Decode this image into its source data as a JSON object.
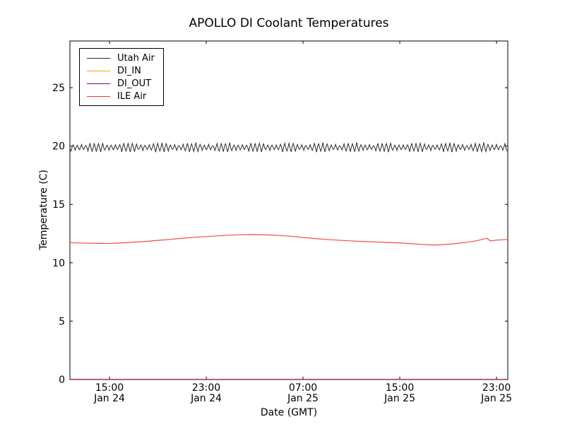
{
  "page": {
    "background_color": "#ffffff"
  },
  "chart_data": {
    "type": "line",
    "title": "APOLLO DI Coolant Temperatures",
    "xlabel": "Date (GMT)",
    "ylabel": "Temperature (C)",
    "grid": false,
    "x_unit": "hours since Jan 24 00:00 GMT",
    "xlim": [
      11.73,
      47.93
    ],
    "ylim": [
      0,
      29
    ],
    "y_ticks": [
      0,
      5,
      10,
      15,
      20,
      25
    ],
    "x_ticks": [
      {
        "hour": 15,
        "line1": "15:00",
        "line2": "Jan 24"
      },
      {
        "hour": 23,
        "line1": "23:00",
        "line2": "Jan 24"
      },
      {
        "hour": 31,
        "line1": "07:00",
        "line2": "Jan 25"
      },
      {
        "hour": 39,
        "line1": "15:00",
        "line2": "Jan 25"
      },
      {
        "hour": 47,
        "line1": "23:00",
        "line2": "Jan 25"
      }
    ],
    "legend": {
      "position": "upper-left",
      "border_color": "#000000",
      "background": "#ffffff"
    },
    "series": [
      {
        "name": "Utah Air",
        "color": "#2b2b2b",
        "style": "oscillating",
        "mean": 19.88,
        "amplitude_min": 0.15,
        "amplitude_max": 0.42,
        "period_hours": 0.35,
        "description": "high-frequency sawtooth oscillating between ~19.5 and ~20.3 C across entire span"
      },
      {
        "name": "DI_IN",
        "color": "#ffa500",
        "style": "constant",
        "value": 0,
        "description": "flat at 0 C, lies on bottom axis"
      },
      {
        "name": "DI_OUT",
        "color": "#800080",
        "style": "constant",
        "value": 0,
        "description": "flat at 0 C, lies on bottom axis"
      },
      {
        "name": "ILE Air",
        "color": "#f03535",
        "style": "points",
        "points": [
          [
            11.73,
            11.72
          ],
          [
            13.0,
            11.68
          ],
          [
            14.0,
            11.66
          ],
          [
            15.0,
            11.65
          ],
          [
            16.0,
            11.7
          ],
          [
            17.0,
            11.76
          ],
          [
            18.0,
            11.83
          ],
          [
            19.0,
            11.92
          ],
          [
            20.0,
            12.0
          ],
          [
            21.0,
            12.1
          ],
          [
            22.0,
            12.18
          ],
          [
            23.0,
            12.24
          ],
          [
            24.0,
            12.31
          ],
          [
            25.0,
            12.37
          ],
          [
            26.0,
            12.4
          ],
          [
            27.0,
            12.41
          ],
          [
            28.0,
            12.39
          ],
          [
            29.0,
            12.34
          ],
          [
            30.0,
            12.27
          ],
          [
            31.0,
            12.17
          ],
          [
            32.0,
            12.07
          ],
          [
            33.0,
            11.99
          ],
          [
            34.0,
            11.93
          ],
          [
            35.0,
            11.87
          ],
          [
            36.0,
            11.82
          ],
          [
            37.0,
            11.78
          ],
          [
            38.0,
            11.74
          ],
          [
            39.0,
            11.7
          ],
          [
            40.0,
            11.63
          ],
          [
            41.0,
            11.56
          ],
          [
            41.8,
            11.52
          ],
          [
            42.5,
            11.55
          ],
          [
            43.5,
            11.63
          ],
          [
            44.5,
            11.74
          ],
          [
            45.3,
            11.88
          ],
          [
            45.9,
            12.02
          ],
          [
            46.2,
            12.1
          ],
          [
            46.5,
            11.86
          ],
          [
            46.9,
            11.93
          ],
          [
            47.4,
            11.97
          ],
          [
            47.93,
            11.99
          ]
        ]
      }
    ]
  }
}
